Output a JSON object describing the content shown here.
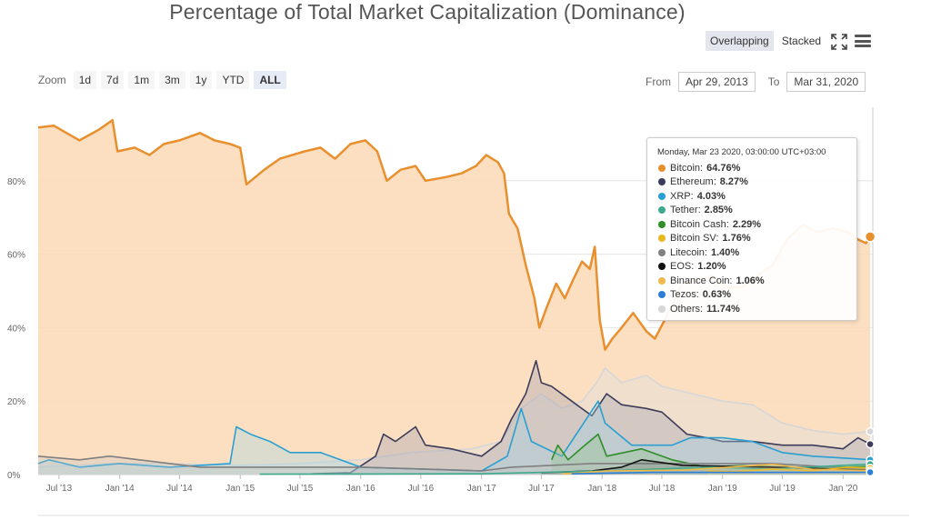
{
  "title": "Percentage of Total Market Capitalization (Dominance)",
  "toolbar": {
    "modes": [
      "Overlapping",
      "Stacked"
    ],
    "active_mode": "Overlapping",
    "icons": [
      "expand-icon",
      "menu-icon"
    ]
  },
  "zoom": {
    "label": "Zoom",
    "buttons": [
      "1d",
      "7d",
      "1m",
      "3m",
      "1y",
      "YTD",
      "ALL"
    ],
    "active": "ALL"
  },
  "range": {
    "from_label": "From",
    "from_value": "Apr 29, 2013",
    "to_label": "To",
    "to_value": "Mar 31, 2020"
  },
  "tooltip": {
    "header": "Monday, Mar 23 2020, 03:00:00 UTC+03:00",
    "rows": [
      {
        "name": "Bitcoin",
        "value": "64.76%",
        "color": "#e88f2e"
      },
      {
        "name": "Ethereum",
        "value": "8.27%",
        "color": "#3c3c5a"
      },
      {
        "name": "XRP",
        "value": "4.03%",
        "color": "#2a9fd2"
      },
      {
        "name": "Tether",
        "value": "2.85%",
        "color": "#3fa98b"
      },
      {
        "name": "Bitcoin Cash",
        "value": "2.29%",
        "color": "#2f8d2a"
      },
      {
        "name": "Bitcoin SV",
        "value": "1.76%",
        "color": "#e9b61c"
      },
      {
        "name": "Litecoin",
        "value": "1.40%",
        "color": "#7f7f7f"
      },
      {
        "name": "EOS",
        "value": "1.20%",
        "color": "#111111"
      },
      {
        "name": "Binance Coin",
        "value": "1.06%",
        "color": "#f0b84a"
      },
      {
        "name": "Tezos",
        "value": "0.63%",
        "color": "#2c7fd6"
      },
      {
        "name": "Others",
        "value": "11.74%",
        "color": "#d6d6d6"
      }
    ]
  },
  "chart_data": {
    "type": "area",
    "title": "Percentage of Total Market Capitalization (Dominance)",
    "xlabel": "",
    "ylabel": "",
    "ylim": [
      0,
      100
    ],
    "yticks": [
      "0%",
      "20%",
      "40%",
      "60%",
      "80%"
    ],
    "xticks": [
      "Jul '13",
      "Jan '14",
      "Jul '14",
      "Jan '15",
      "Jul '15",
      "Jan '16",
      "Jul '16",
      "Jan '17",
      "Jul '17",
      "Jan '18",
      "Jul '18",
      "Jan '19",
      "Jul '19",
      "Jan '20"
    ],
    "grid": true,
    "legend": "tooltip",
    "series": [
      {
        "name": "Bitcoin",
        "color": "#e88f2e",
        "fill": "#fbd9b6",
        "fill_opacity": 0.85,
        "points": [
          [
            "2013-04-29",
            94.5
          ],
          [
            "2013-06-15",
            95
          ],
          [
            "2013-09-01",
            91
          ],
          [
            "2013-11-01",
            94
          ],
          [
            "2013-12-10",
            96.5
          ],
          [
            "2013-12-25",
            88
          ],
          [
            "2014-02-15",
            89
          ],
          [
            "2014-04-01",
            87
          ],
          [
            "2014-05-15",
            90
          ],
          [
            "2014-07-01",
            91
          ],
          [
            "2014-09-01",
            93
          ],
          [
            "2014-10-15",
            91
          ],
          [
            "2014-12-01",
            90
          ],
          [
            "2015-01-01",
            89
          ],
          [
            "2015-01-20",
            79
          ],
          [
            "2015-03-15",
            83
          ],
          [
            "2015-05-01",
            86
          ],
          [
            "2015-07-15",
            88
          ],
          [
            "2015-09-01",
            89
          ],
          [
            "2015-10-15",
            86
          ],
          [
            "2015-12-01",
            90
          ],
          [
            "2016-01-15",
            91
          ],
          [
            "2016-02-20",
            88
          ],
          [
            "2016-03-20",
            80
          ],
          [
            "2016-05-01",
            83
          ],
          [
            "2016-06-15",
            84
          ],
          [
            "2016-07-15",
            80
          ],
          [
            "2016-09-15",
            81
          ],
          [
            "2016-11-01",
            82
          ],
          [
            "2016-12-15",
            84
          ],
          [
            "2017-01-15",
            87
          ],
          [
            "2017-02-20",
            85
          ],
          [
            "2017-03-10",
            82
          ],
          [
            "2017-03-25",
            71
          ],
          [
            "2017-04-20",
            67
          ],
          [
            "2017-05-15",
            57
          ],
          [
            "2017-06-10",
            48
          ],
          [
            "2017-06-25",
            40
          ],
          [
            "2017-07-15",
            45
          ],
          [
            "2017-08-15",
            52
          ],
          [
            "2017-09-10",
            48
          ],
          [
            "2017-10-05",
            53
          ],
          [
            "2017-11-01",
            58
          ],
          [
            "2017-11-25",
            56
          ],
          [
            "2017-12-10",
            62
          ],
          [
            "2017-12-25",
            42
          ],
          [
            "2018-01-10",
            34
          ],
          [
            "2018-02-01",
            37
          ],
          [
            "2018-03-01",
            40
          ],
          [
            "2018-04-05",
            44
          ],
          [
            "2018-05-15",
            39
          ],
          [
            "2018-06-10",
            37
          ],
          [
            "2018-07-15",
            43
          ],
          [
            "2018-09-01",
            52
          ],
          [
            "2018-10-15",
            53
          ],
          [
            "2018-12-01",
            54
          ],
          [
            "2019-01-15",
            51
          ],
          [
            "2019-03-01",
            51
          ],
          [
            "2019-04-15",
            54
          ],
          [
            "2019-06-01",
            57
          ],
          [
            "2019-07-15",
            64
          ],
          [
            "2019-09-01",
            68
          ],
          [
            "2019-10-15",
            66
          ],
          [
            "2019-12-01",
            67
          ],
          [
            "2020-01-15",
            66
          ],
          [
            "2020-02-15",
            64
          ],
          [
            "2020-03-10",
            63
          ],
          [
            "2020-03-23",
            64.76
          ]
        ]
      },
      {
        "name": "Others",
        "color": "#d6d6d6",
        "fill": "#dedede",
        "fill_opacity": 0.4,
        "points": [
          [
            "2013-04-29",
            2
          ],
          [
            "2013-12-01",
            3
          ],
          [
            "2014-06-01",
            3
          ],
          [
            "2015-01-01",
            2.5
          ],
          [
            "2015-07-01",
            3
          ],
          [
            "2016-01-01",
            4
          ],
          [
            "2016-06-01",
            6
          ],
          [
            "2016-12-01",
            7
          ],
          [
            "2017-03-01",
            9
          ],
          [
            "2017-05-01",
            18
          ],
          [
            "2017-07-01",
            22
          ],
          [
            "2017-09-01",
            18
          ],
          [
            "2017-11-01",
            20
          ],
          [
            "2017-12-15",
            25
          ],
          [
            "2018-01-10",
            29
          ],
          [
            "2018-03-01",
            25
          ],
          [
            "2018-05-15",
            27
          ],
          [
            "2018-07-01",
            24
          ],
          [
            "2018-10-01",
            22
          ],
          [
            "2019-01-01",
            20
          ],
          [
            "2019-04-01",
            19
          ],
          [
            "2019-07-01",
            14
          ],
          [
            "2019-10-01",
            12
          ],
          [
            "2020-01-01",
            11
          ],
          [
            "2020-03-23",
            11.74
          ]
        ]
      },
      {
        "name": "Ethereum",
        "color": "#3c3c5a",
        "fill": "#9d9fb0",
        "fill_opacity": 0.35,
        "points": [
          [
            "2015-08-07",
            0.2
          ],
          [
            "2015-12-01",
            0.5
          ],
          [
            "2016-02-15",
            5
          ],
          [
            "2016-03-10",
            11
          ],
          [
            "2016-04-15",
            9
          ],
          [
            "2016-06-15",
            13
          ],
          [
            "2016-07-15",
            8
          ],
          [
            "2016-10-01",
            7
          ],
          [
            "2017-01-01",
            5
          ],
          [
            "2017-03-01",
            9
          ],
          [
            "2017-04-01",
            15
          ],
          [
            "2017-05-15",
            22
          ],
          [
            "2017-06-15",
            31
          ],
          [
            "2017-07-01",
            25
          ],
          [
            "2017-08-01",
            24
          ],
          [
            "2017-10-01",
            20
          ],
          [
            "2017-12-01",
            16
          ],
          [
            "2018-01-15",
            22
          ],
          [
            "2018-03-01",
            19
          ],
          [
            "2018-05-15",
            18
          ],
          [
            "2018-07-01",
            17
          ],
          [
            "2018-09-15",
            11
          ],
          [
            "2018-11-15",
            10
          ],
          [
            "2019-01-01",
            9
          ],
          [
            "2019-04-01",
            9
          ],
          [
            "2019-07-01",
            8
          ],
          [
            "2019-10-01",
            8
          ],
          [
            "2020-01-01",
            7
          ],
          [
            "2020-02-15",
            10
          ],
          [
            "2020-03-23",
            8.27
          ]
        ]
      },
      {
        "name": "XRP",
        "color": "#2a9fd2",
        "fill": "#9fd3e8",
        "fill_opacity": 0.35,
        "points": [
          [
            "2013-04-29",
            3
          ],
          [
            "2013-06-01",
            4
          ],
          [
            "2013-09-01",
            2
          ],
          [
            "2014-01-01",
            3
          ],
          [
            "2014-06-01",
            2
          ],
          [
            "2014-12-01",
            3
          ],
          [
            "2014-12-20",
            13
          ],
          [
            "2015-02-01",
            11
          ],
          [
            "2015-04-01",
            9
          ],
          [
            "2015-06-01",
            6
          ],
          [
            "2015-09-01",
            6
          ],
          [
            "2016-01-01",
            2
          ],
          [
            "2016-07-01",
            1.5
          ],
          [
            "2017-01-01",
            1
          ],
          [
            "2017-03-20",
            5
          ],
          [
            "2017-05-01",
            18
          ],
          [
            "2017-06-01",
            9
          ],
          [
            "2017-09-01",
            5
          ],
          [
            "2017-12-20",
            20
          ],
          [
            "2018-01-10",
            14
          ],
          [
            "2018-04-01",
            8
          ],
          [
            "2018-08-01",
            8
          ],
          [
            "2018-09-25",
            10
          ],
          [
            "2019-01-01",
            10
          ],
          [
            "2019-04-01",
            9
          ],
          [
            "2019-07-01",
            6
          ],
          [
            "2019-10-01",
            5
          ],
          [
            "2020-01-01",
            4.5
          ],
          [
            "2020-03-23",
            4.03
          ]
        ]
      },
      {
        "name": "Bitcoin Cash",
        "color": "#2f8d2a",
        "fill": "#8fc386",
        "fill_opacity": 0.35,
        "points": [
          [
            "2017-08-01",
            4
          ],
          [
            "2017-08-20",
            8
          ],
          [
            "2017-09-20",
            4
          ],
          [
            "2017-11-10",
            8
          ],
          [
            "2017-12-20",
            11
          ],
          [
            "2018-01-15",
            5
          ],
          [
            "2018-05-01",
            7
          ],
          [
            "2018-08-01",
            4
          ],
          [
            "2018-11-15",
            2
          ],
          [
            "2019-03-01",
            2.5
          ],
          [
            "2019-07-01",
            2
          ],
          [
            "2020-01-01",
            2
          ],
          [
            "2020-03-23",
            2.29
          ]
        ]
      },
      {
        "name": "Litecoin",
        "color": "#7f7f7f",
        "fill": "#bfbfbf",
        "fill_opacity": 0.3,
        "points": [
          [
            "2013-04-29",
            5
          ],
          [
            "2013-09-01",
            4
          ],
          [
            "2013-12-01",
            5
          ],
          [
            "2014-03-01",
            4
          ],
          [
            "2014-09-01",
            2
          ],
          [
            "2015-06-01",
            2
          ],
          [
            "2016-01-01",
            2
          ],
          [
            "2017-01-01",
            1
          ],
          [
            "2017-04-01",
            2
          ],
          [
            "2017-12-01",
            3
          ],
          [
            "2018-06-01",
            3
          ],
          [
            "2019-01-01",
            3
          ],
          [
            "2019-06-01",
            3
          ],
          [
            "2020-03-23",
            1.4
          ]
        ]
      },
      {
        "name": "EOS",
        "color": "#111111",
        "fill": "#555555",
        "fill_opacity": 0.2,
        "points": [
          [
            "2017-07-01",
            0.5
          ],
          [
            "2017-12-01",
            1
          ],
          [
            "2018-03-01",
            2
          ],
          [
            "2018-05-01",
            4
          ],
          [
            "2018-09-01",
            2.5
          ],
          [
            "2019-06-01",
            2
          ],
          [
            "2020-03-23",
            1.2
          ]
        ]
      },
      {
        "name": "Tether",
        "color": "#3fa98b",
        "fill": "#a6d8c8",
        "fill_opacity": 0.2,
        "points": [
          [
            "2015-03-01",
            0.1
          ],
          [
            "2017-01-01",
            0.2
          ],
          [
            "2018-01-01",
            1
          ],
          [
            "2018-12-01",
            2
          ],
          [
            "2019-06-01",
            1.5
          ],
          [
            "2020-01-01",
            2.5
          ],
          [
            "2020-03-23",
            2.85
          ]
        ]
      },
      {
        "name": "Bitcoin SV",
        "color": "#e9b61c",
        "fill": "#f5dc8a",
        "fill_opacity": 0.2,
        "points": [
          [
            "2018-11-15",
            1
          ],
          [
            "2019-02-01",
            0.8
          ],
          [
            "2019-06-01",
            1.5
          ],
          [
            "2019-10-01",
            1
          ],
          [
            "2020-01-15",
            2
          ],
          [
            "2020-03-23",
            1.76
          ]
        ]
      },
      {
        "name": "Binance Coin",
        "color": "#f0b84a",
        "fill": "#f8dba0",
        "fill_opacity": 0.2,
        "points": [
          [
            "2017-09-01",
            0.1
          ],
          [
            "2018-01-15",
            1
          ],
          [
            "2018-09-01",
            1.2
          ],
          [
            "2019-06-01",
            2.8
          ],
          [
            "2019-10-01",
            1.4
          ],
          [
            "2020-03-23",
            1.06
          ]
        ]
      },
      {
        "name": "Tezos",
        "color": "#2c7fd6",
        "fill": "#9fc5ee",
        "fill_opacity": 0.2,
        "points": [
          [
            "2017-10-01",
            0.2
          ],
          [
            "2018-06-01",
            0.6
          ],
          [
            "2019-06-01",
            0.6
          ],
          [
            "2020-03-23",
            0.63
          ]
        ]
      }
    ]
  }
}
